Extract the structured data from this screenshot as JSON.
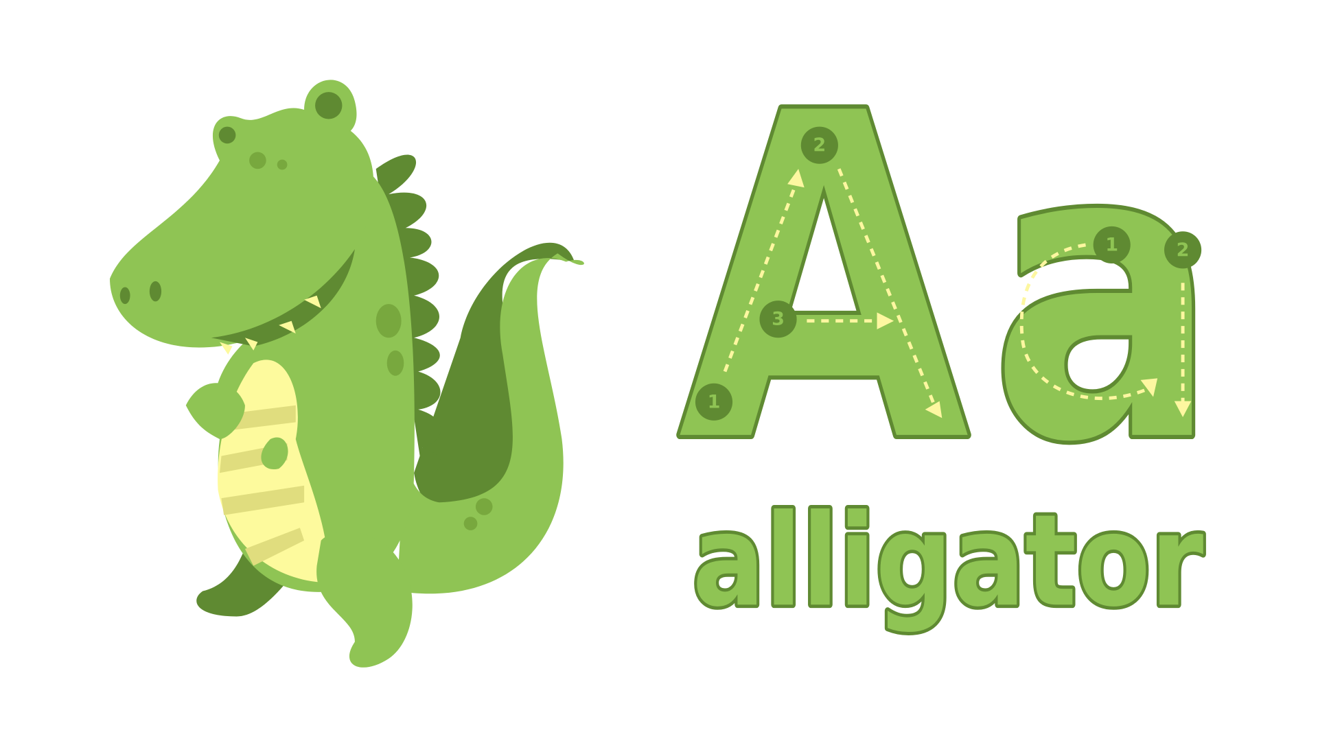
{
  "letters": {
    "uppercase": "A",
    "lowercase": "a"
  },
  "word": "alligator",
  "strokes": {
    "uppercase": [
      1,
      2,
      3
    ],
    "lowercase": [
      1,
      2
    ]
  }
}
